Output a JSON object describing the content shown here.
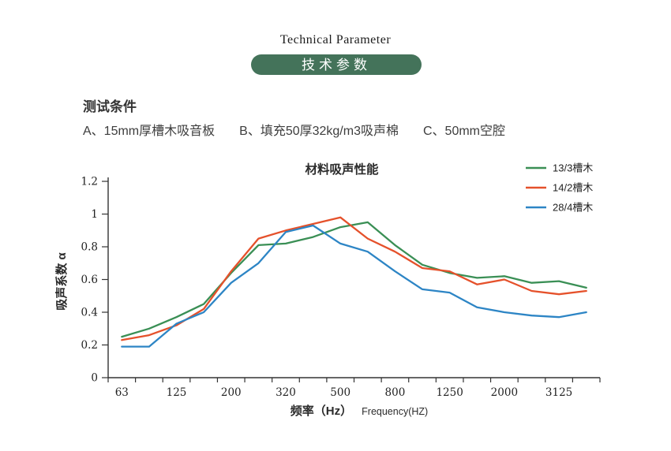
{
  "header": {
    "title_en": "Technical Parameter",
    "title_zh": "技术参数",
    "banner_color": "#44735a"
  },
  "conditions": {
    "heading": "测试条件",
    "items": [
      "A、15mm厚槽木吸音板",
      "B、填充50厚32kg/m3吸声棉",
      "C、50mm空腔"
    ]
  },
  "chart_data": {
    "type": "line",
    "title": "材料吸声性能",
    "ylabel": "吸声系数 α",
    "xlabel_zh": "频率（Hz）",
    "xlabel_en": "Frequency(HZ)",
    "ylim": [
      0,
      1.2
    ],
    "grid": false,
    "legend_position": "top-right",
    "y_ticks": [
      "0",
      "0.2",
      "0.4",
      "0.6",
      "0.8",
      "1",
      "1.2"
    ],
    "x_tick_labels": [
      "63",
      "125",
      "200",
      "320",
      "500",
      "800",
      "1250",
      "2000",
      "3125"
    ],
    "x": [
      63,
      90,
      125,
      160,
      200,
      250,
      320,
      400,
      500,
      630,
      800,
      1000,
      1250,
      1600,
      2000,
      2500,
      3125,
      4000
    ],
    "series": [
      {
        "name": "13/3槽木",
        "color": "#3a8f55",
        "values": [
          0.25,
          0.3,
          0.37,
          0.45,
          0.64,
          0.81,
          0.82,
          0.86,
          0.92,
          0.95,
          0.81,
          0.69,
          0.64,
          0.61,
          0.62,
          0.58,
          0.59,
          0.55
        ]
      },
      {
        "name": "14/2槽木",
        "color": "#e5512b",
        "values": [
          0.23,
          0.26,
          0.32,
          0.42,
          0.65,
          0.85,
          0.9,
          0.94,
          0.98,
          0.85,
          0.77,
          0.67,
          0.65,
          0.57,
          0.6,
          0.53,
          0.51,
          0.53
        ]
      },
      {
        "name": "28/4槽木",
        "color": "#2d85c5",
        "values": [
          0.19,
          0.19,
          0.33,
          0.4,
          0.58,
          0.7,
          0.89,
          0.93,
          0.82,
          0.77,
          0.65,
          0.54,
          0.52,
          0.43,
          0.4,
          0.38,
          0.37,
          0.4
        ]
      }
    ]
  }
}
